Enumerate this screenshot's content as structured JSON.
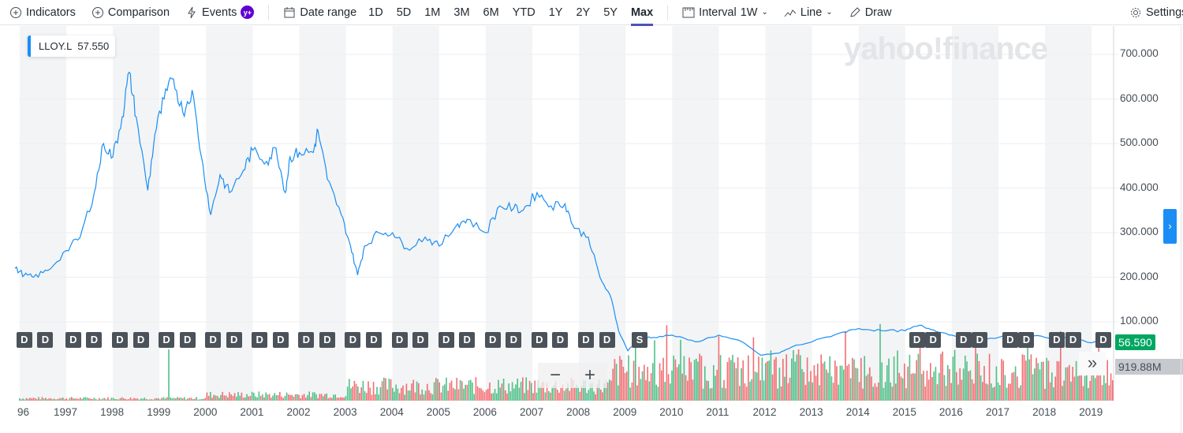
{
  "toolbar": {
    "indicators": "Indicators",
    "comparison": "Comparison",
    "events": "Events",
    "events_badge": "y+",
    "date_range": "Date range",
    "ranges": [
      "1D",
      "5D",
      "1M",
      "3M",
      "6M",
      "YTD",
      "1Y",
      "2Y",
      "5Y",
      "Max"
    ],
    "selected_range": "Max",
    "interval": "Interval",
    "interval_value": "1W",
    "chart_type": "Line",
    "draw": "Draw",
    "settings": "Settings"
  },
  "legend": {
    "symbol": "LLOY.L",
    "value": "57.550"
  },
  "watermark": "yahoo!finance",
  "current_price": "56.590",
  "current_volume": "919.88M",
  "zoom": {
    "minus": "−",
    "plus": "+"
  },
  "more": "»",
  "colors": {
    "line": "#1a8ef5",
    "up": "#2fb673",
    "down": "#f0555a",
    "price_badge": "#00a661"
  },
  "events": [
    {
      "t": "D",
      "year": 1996.1
    },
    {
      "t": "D",
      "year": 1996.55
    },
    {
      "t": "D",
      "year": 1997.15
    },
    {
      "t": "D",
      "year": 1997.6
    },
    {
      "t": "D",
      "year": 1998.15
    },
    {
      "t": "D",
      "year": 1998.6
    },
    {
      "t": "D",
      "year": 1999.15
    },
    {
      "t": "D",
      "year": 1999.6
    },
    {
      "t": "D",
      "year": 2000.15
    },
    {
      "t": "D",
      "year": 2000.6
    },
    {
      "t": "D",
      "year": 2001.15
    },
    {
      "t": "D",
      "year": 2001.6
    },
    {
      "t": "D",
      "year": 2002.15
    },
    {
      "t": "D",
      "year": 2002.6
    },
    {
      "t": "D",
      "year": 2003.15
    },
    {
      "t": "D",
      "year": 2003.6
    },
    {
      "t": "D",
      "year": 2004.15
    },
    {
      "t": "D",
      "year": 2004.6
    },
    {
      "t": "D",
      "year": 2005.15
    },
    {
      "t": "D",
      "year": 2005.6
    },
    {
      "t": "D",
      "year": 2006.15
    },
    {
      "t": "D",
      "year": 2006.6
    },
    {
      "t": "D",
      "year": 2007.15
    },
    {
      "t": "D",
      "year": 2007.6
    },
    {
      "t": "D",
      "year": 2008.15
    },
    {
      "t": "D",
      "year": 2008.6
    },
    {
      "t": "S",
      "year": 2009.3
    },
    {
      "t": "D",
      "year": 2015.25
    },
    {
      "t": "D",
      "year": 2015.6
    },
    {
      "t": "D",
      "year": 2016.25
    },
    {
      "t": "D",
      "year": 2016.6
    },
    {
      "t": "D",
      "year": 2017.25
    },
    {
      "t": "D",
      "year": 2017.6
    },
    {
      "t": "D",
      "year": 2018.25
    },
    {
      "t": "D",
      "year": 2018.6
    },
    {
      "t": "D",
      "year": 2019.25
    }
  ],
  "chart_data": {
    "type": "line",
    "symbol": "LLOY.L",
    "xlim": [
      1995.9,
      2019.5
    ],
    "ylim": [
      0,
      780
    ],
    "y_ticks": [
      "100.000",
      "200.000",
      "300.000",
      "400.000",
      "500.000",
      "600.000",
      "700.000"
    ],
    "x_ticks": [
      "96",
      "1997",
      "1998",
      "1999",
      "2000",
      "2001",
      "2002",
      "2003",
      "2004",
      "2005",
      "2006",
      "2007",
      "2008",
      "2009",
      "2010",
      "2011",
      "2012",
      "2013",
      "2014",
      "2015",
      "2016",
      "2017",
      "2018",
      "2019"
    ],
    "series": [
      {
        "name": "LLOY.L",
        "points": [
          [
            1995.9,
            220
          ],
          [
            1996.1,
            205
          ],
          [
            1996.3,
            200
          ],
          [
            1996.6,
            215
          ],
          [
            1997.0,
            260
          ],
          [
            1997.3,
            290
          ],
          [
            1997.6,
            390
          ],
          [
            1997.8,
            500
          ],
          [
            1998.0,
            470
          ],
          [
            1998.2,
            560
          ],
          [
            1998.35,
            660
          ],
          [
            1998.5,
            560
          ],
          [
            1998.75,
            395
          ],
          [
            1998.9,
            520
          ],
          [
            1999.1,
            600
          ],
          [
            1999.3,
            645
          ],
          [
            1999.5,
            570
          ],
          [
            1999.7,
            620
          ],
          [
            1999.9,
            470
          ],
          [
            2000.1,
            340
          ],
          [
            2000.3,
            430
          ],
          [
            2000.5,
            390
          ],
          [
            2000.8,
            440
          ],
          [
            2001.0,
            485
          ],
          [
            2001.3,
            460
          ],
          [
            2001.5,
            490
          ],
          [
            2001.7,
            390
          ],
          [
            2001.8,
            470
          ],
          [
            2002.0,
            480
          ],
          [
            2002.3,
            480
          ],
          [
            2002.4,
            530
          ],
          [
            2002.6,
            420
          ],
          [
            2002.9,
            340
          ],
          [
            2003.1,
            270
          ],
          [
            2003.25,
            205
          ],
          [
            2003.4,
            270
          ],
          [
            2003.7,
            300
          ],
          [
            2004.0,
            300
          ],
          [
            2004.3,
            265
          ],
          [
            2004.7,
            290
          ],
          [
            2005.0,
            270
          ],
          [
            2005.4,
            320
          ],
          [
            2005.6,
            330
          ],
          [
            2006.0,
            300
          ],
          [
            2006.3,
            360
          ],
          [
            2006.6,
            355
          ],
          [
            2006.8,
            350
          ],
          [
            2007.1,
            390
          ],
          [
            2007.4,
            360
          ],
          [
            2007.7,
            365
          ],
          [
            2007.9,
            310
          ],
          [
            2008.2,
            290
          ],
          [
            2008.45,
            200
          ],
          [
            2008.7,
            150
          ],
          [
            2008.85,
            80
          ],
          [
            2009.05,
            35
          ],
          [
            2009.3,
            65
          ],
          [
            2009.6,
            65
          ],
          [
            2010.0,
            70
          ],
          [
            2010.5,
            55
          ],
          [
            2011.0,
            70
          ],
          [
            2011.5,
            55
          ],
          [
            2011.9,
            25
          ],
          [
            2012.3,
            30
          ],
          [
            2012.6,
            45
          ],
          [
            2013.0,
            55
          ],
          [
            2013.6,
            75
          ],
          [
            2014.0,
            85
          ],
          [
            2014.5,
            80
          ],
          [
            2015.0,
            80
          ],
          [
            2015.3,
            92
          ],
          [
            2015.6,
            82
          ],
          [
            2016.0,
            70
          ],
          [
            2016.5,
            55
          ],
          [
            2017.0,
            65
          ],
          [
            2017.5,
            72
          ],
          [
            2018.0,
            65
          ],
          [
            2018.5,
            66
          ],
          [
            2019.0,
            53
          ],
          [
            2019.4,
            60
          ]
        ]
      }
    ]
  }
}
